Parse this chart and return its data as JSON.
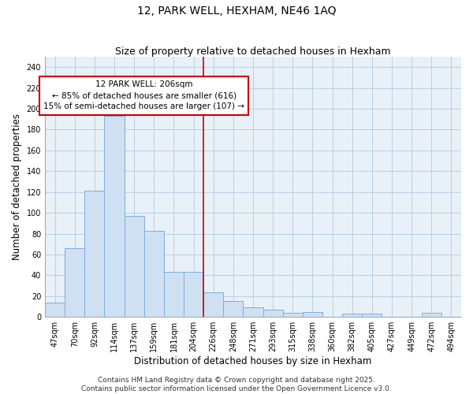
{
  "title": "12, PARK WELL, HEXHAM, NE46 1AQ",
  "subtitle": "Size of property relative to detached houses in Hexham",
  "xlabel": "Distribution of detached houses by size in Hexham",
  "ylabel": "Number of detached properties",
  "categories": [
    "47sqm",
    "70sqm",
    "92sqm",
    "114sqm",
    "137sqm",
    "159sqm",
    "181sqm",
    "204sqm",
    "226sqm",
    "248sqm",
    "271sqm",
    "293sqm",
    "315sqm",
    "338sqm",
    "360sqm",
    "382sqm",
    "405sqm",
    "427sqm",
    "449sqm",
    "472sqm",
    "494sqm"
  ],
  "bar_heights": [
    14,
    66,
    121,
    193,
    97,
    83,
    43,
    43,
    24,
    15,
    9,
    7,
    4,
    5,
    0,
    3,
    3,
    0,
    0,
    4,
    0
  ],
  "bar_color": "#cfe0f3",
  "bar_edge_color": "#7aafdf",
  "bar_edge_width": 0.7,
  "grid_color": "#b8cfe8",
  "bg_color": "#e8f0f8",
  "vline_color": "#cc0000",
  "annotation_text": "12 PARK WELL: 206sqm\n← 85% of detached houses are smaller (616)\n15% of semi-detached houses are larger (107) →",
  "annotation_box_color": "#ffffff",
  "annotation_box_edge": "#cc0000",
  "ylim": [
    0,
    250
  ],
  "yticks": [
    0,
    20,
    40,
    60,
    80,
    100,
    120,
    140,
    160,
    180,
    200,
    220,
    240
  ],
  "footnote": "Contains HM Land Registry data © Crown copyright and database right 2025.\nContains public sector information licensed under the Open Government Licence v3.0.",
  "title_fontsize": 10,
  "subtitle_fontsize": 9,
  "axis_label_fontsize": 8.5,
  "tick_fontsize": 7,
  "annotation_fontsize": 7.5,
  "footnote_fontsize": 6.5
}
